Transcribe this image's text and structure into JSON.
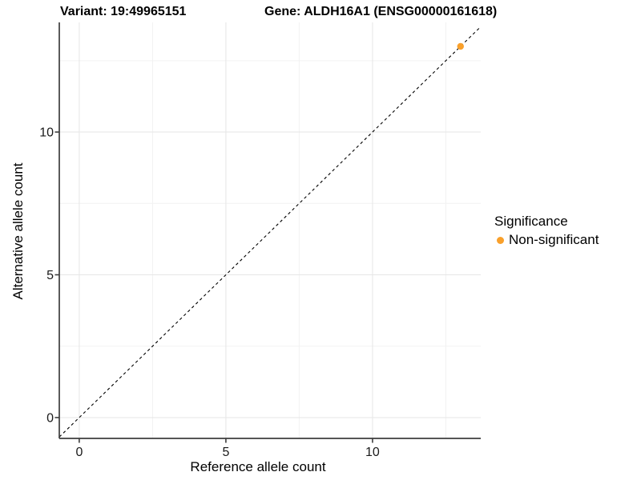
{
  "title": {
    "variant": "Variant: 19:49965151",
    "gene": "Gene: ALDH16A1 (ENSG00000161618)"
  },
  "axes": {
    "x_label": "Reference allele count",
    "y_label": "Alternative allele count"
  },
  "legend": {
    "title": "Significance",
    "items": [
      {
        "label": "Non-significant",
        "color": "#F9A02B"
      }
    ]
  },
  "colors": {
    "point": "#F9A02B",
    "grid_major": "#e6e6e6",
    "grid_minor": "#f2f2f2",
    "axis_line": "#3d3d3d",
    "tick_text": "#1a1a1a",
    "identity_line": "#000000",
    "background": "#ffffff"
  },
  "chart_data": {
    "type": "scatter",
    "title": "Variant: 19:49965151   Gene: ALDH16A1 (ENSG00000161618)",
    "xlabel": "Reference allele count",
    "ylabel": "Alternative allele count",
    "xlim": [
      -0.68,
      13.69
    ],
    "ylim": [
      -0.73,
      13.84
    ],
    "x_major_ticks": [
      0,
      5,
      10
    ],
    "y_major_ticks": [
      0,
      5,
      10
    ],
    "x_minor_ticks": [
      2.5,
      7.5,
      12.5
    ],
    "y_minor_ticks": [
      2.5,
      7.5,
      12.5
    ],
    "grid": "on",
    "legend_title": "Significance",
    "legend_position": "right",
    "reference_line": {
      "type": "identity",
      "slope": 1,
      "intercept": 0,
      "style": "dashed",
      "color": "#000000"
    },
    "series": [
      {
        "name": "Non-significant",
        "color": "#F9A02B",
        "points": [
          {
            "x": 13,
            "y": 13
          }
        ]
      }
    ]
  }
}
